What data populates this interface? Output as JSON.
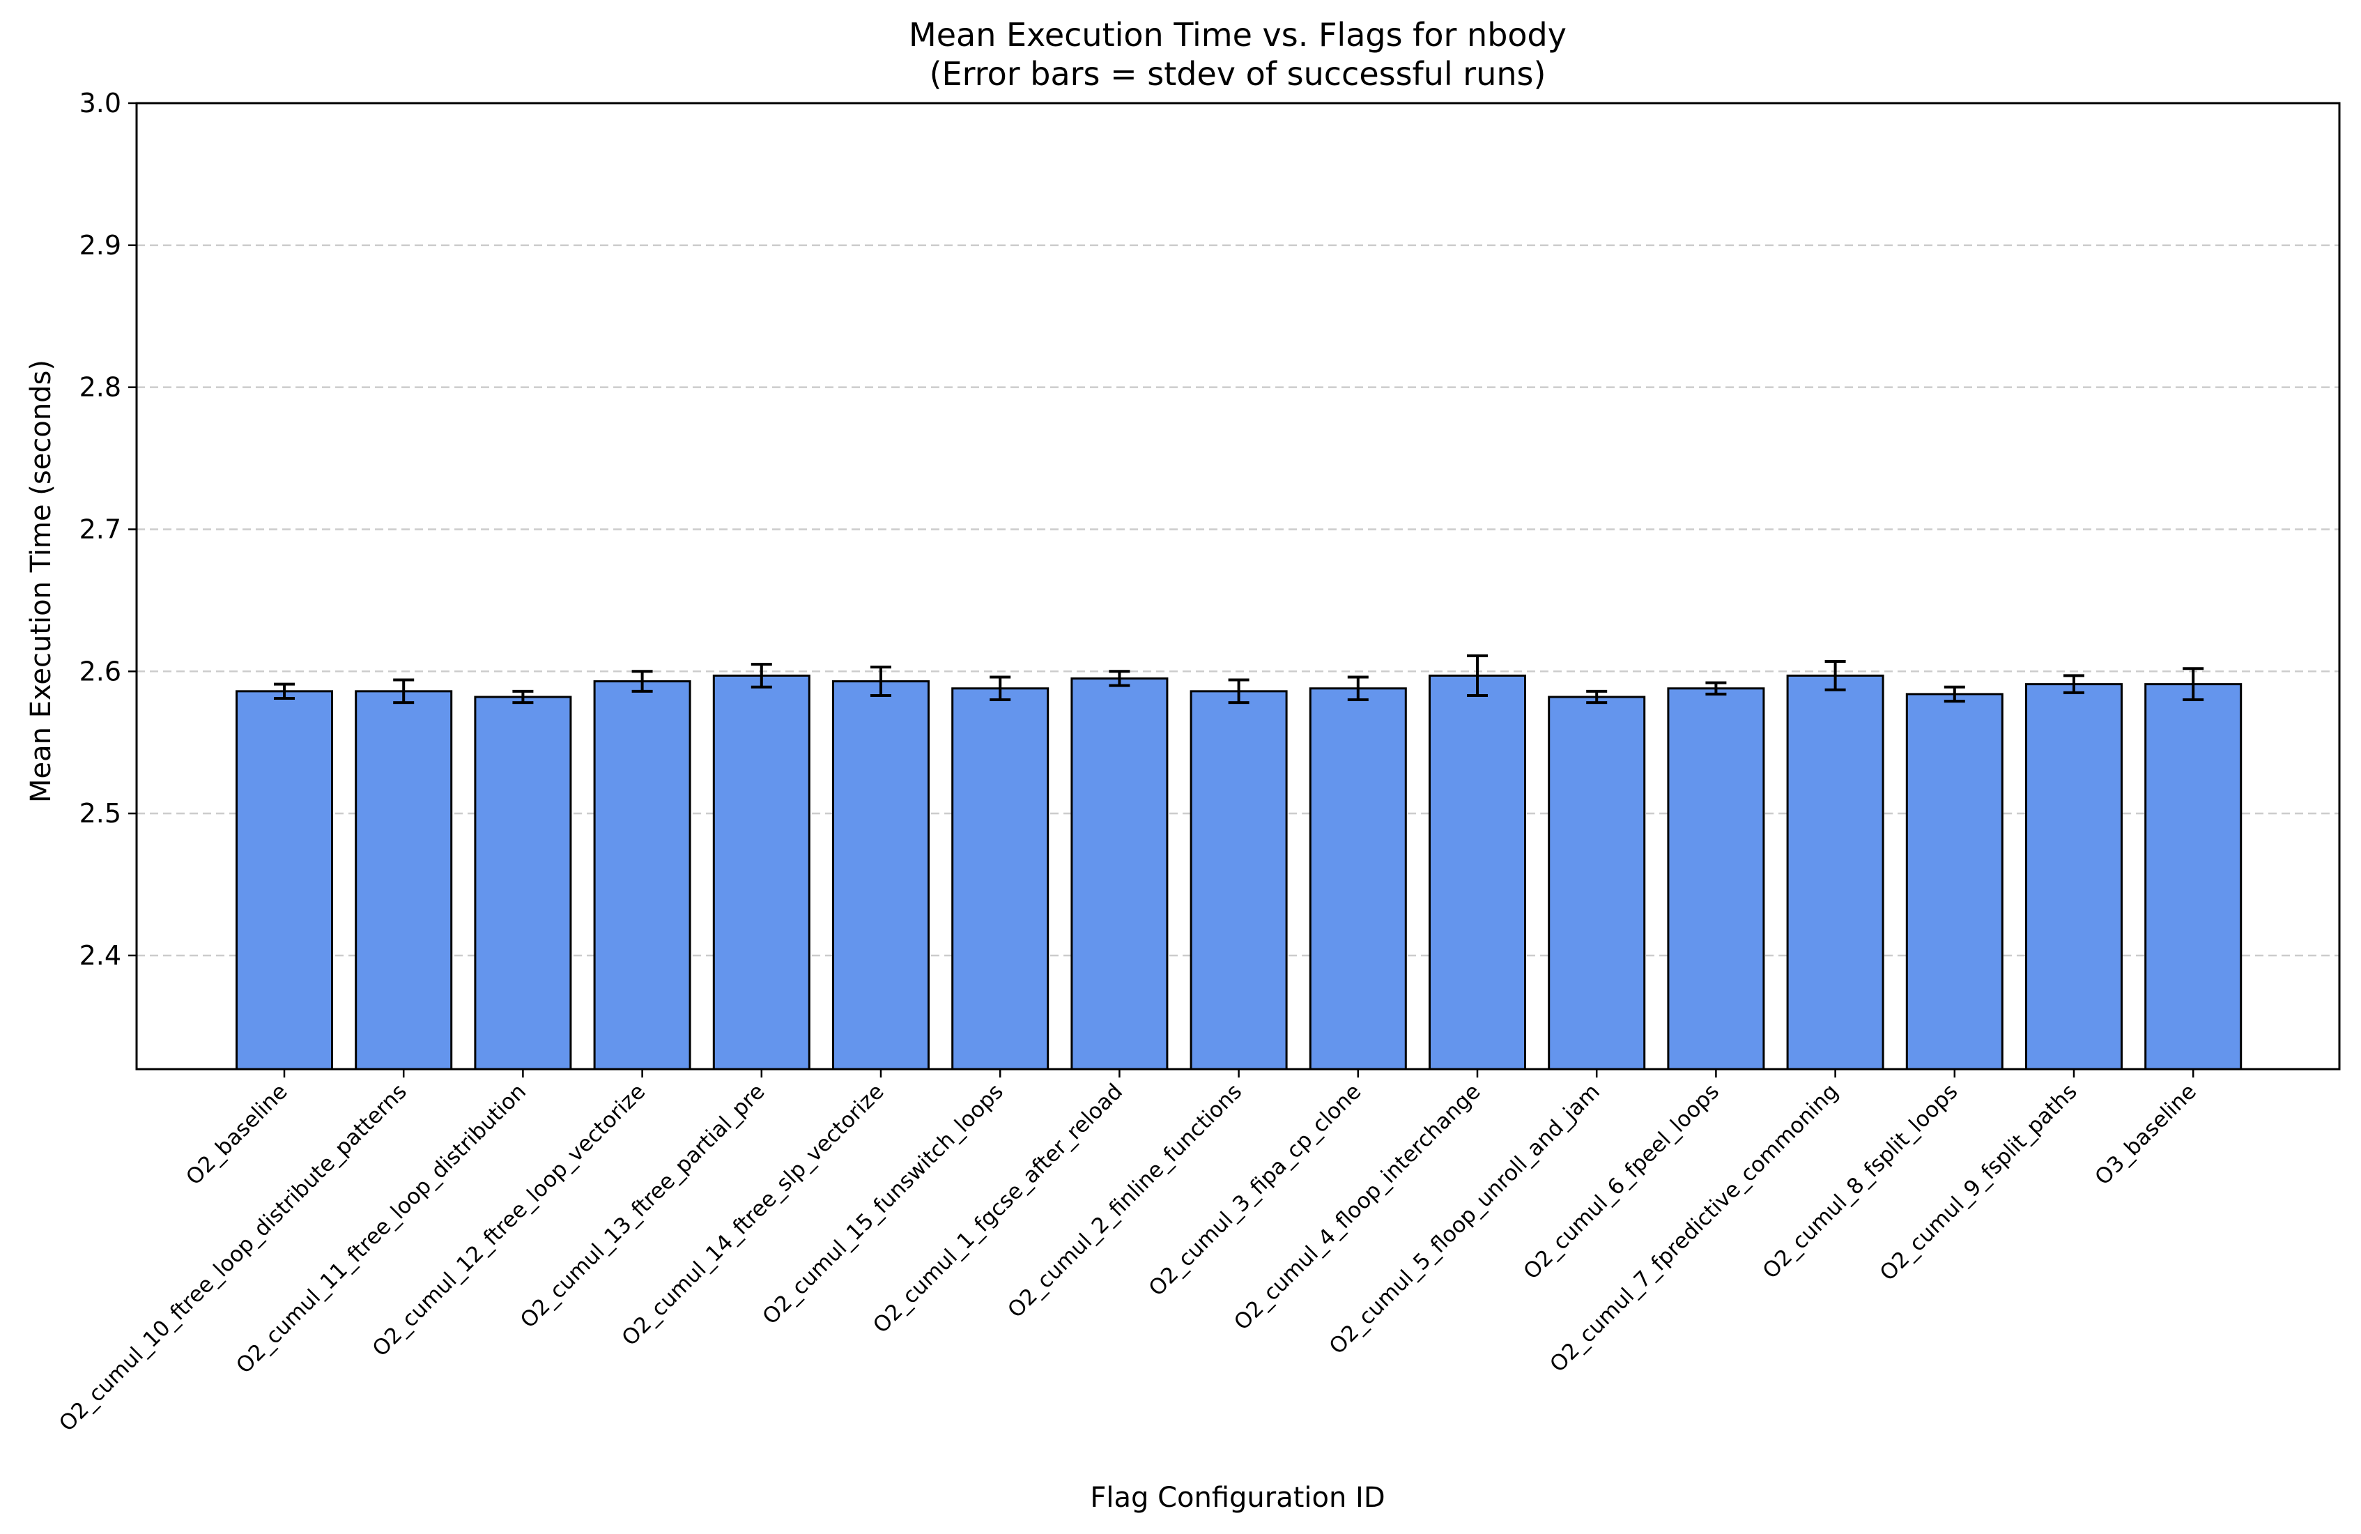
{
  "chart_data": {
    "type": "bar",
    "title": "Mean Execution Time vs. Flags for nbody",
    "subtitle": "(Error bars = stdev of successful runs)",
    "xlabel": "Flag Configuration ID",
    "ylabel": "Mean Execution Time (seconds)",
    "ylim": [
      2.32,
      3.0
    ],
    "yticks": [
      "2.4",
      "2.5",
      "2.6",
      "2.7",
      "2.8",
      "2.9",
      "3.0"
    ],
    "grid": "y-dashed",
    "legend": "none",
    "categories": [
      "O2_baseline",
      "O2_cumul_10_ftree_loop_distribute_patterns",
      "O2_cumul_11_ftree_loop_distribution",
      "O2_cumul_12_ftree_loop_vectorize",
      "O2_cumul_13_ftree_partial_pre",
      "O2_cumul_14_ftree_slp_vectorize",
      "O2_cumul_15_funswitch_loops",
      "O2_cumul_1_fgcse_after_reload",
      "O2_cumul_2_finline_functions",
      "O2_cumul_3_fipa_cp_clone",
      "O2_cumul_4_floop_interchange",
      "O2_cumul_5_floop_unroll_and_jam",
      "O2_cumul_6_fpeel_loops",
      "O2_cumul_7_fpredictive_commoning",
      "O2_cumul_8_fsplit_loops",
      "O2_cumul_9_fsplit_paths",
      "O3_baseline"
    ],
    "values": [
      2.586,
      2.586,
      2.582,
      2.593,
      2.597,
      2.593,
      2.588,
      2.595,
      2.586,
      2.588,
      2.597,
      2.582,
      2.588,
      2.597,
      2.584,
      2.591,
      2.591
    ],
    "errors": [
      0.005,
      0.008,
      0.004,
      0.007,
      0.008,
      0.01,
      0.008,
      0.005,
      0.008,
      0.008,
      0.014,
      0.004,
      0.004,
      0.01,
      0.005,
      0.006,
      0.011
    ],
    "bar_color": "#6495ED",
    "edge_color": "#000000",
    "grid_color": "#cccccc"
  }
}
